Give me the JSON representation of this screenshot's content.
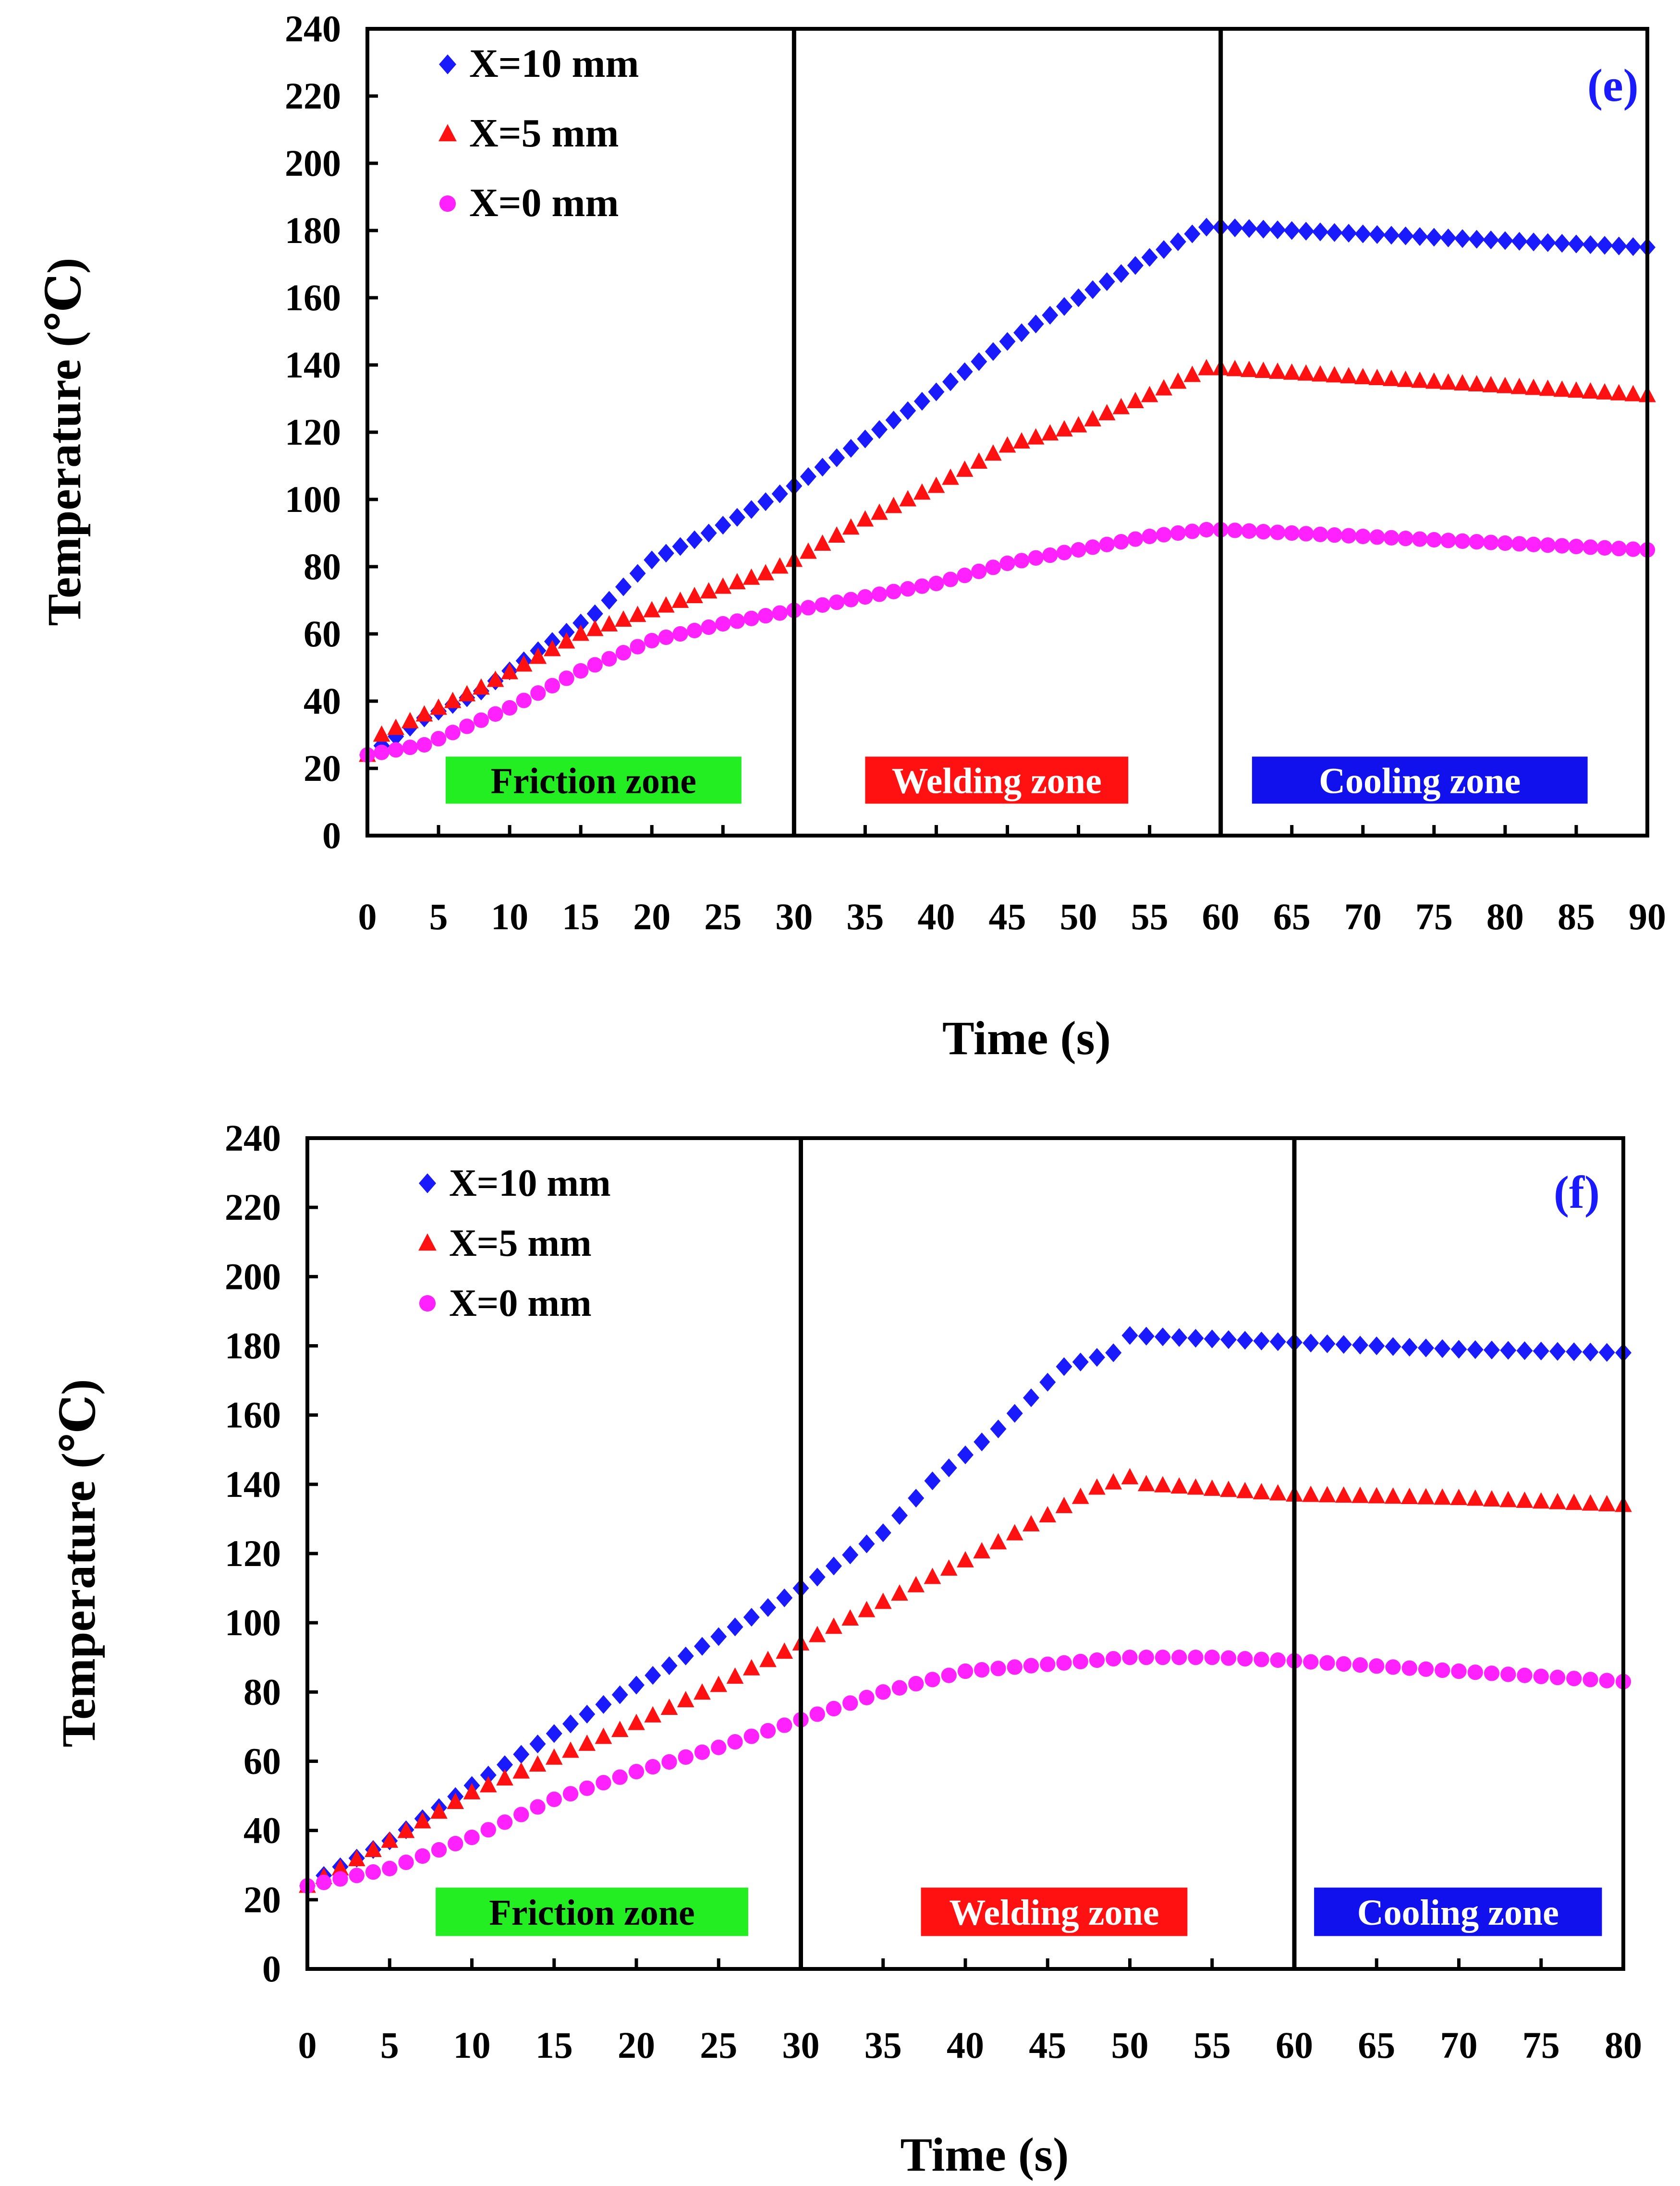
{
  "chart_data": [
    {
      "type": "scatter",
      "panel_label": "(e)",
      "xlabel": "Time (s)",
      "ylabel": "Temperature (℃)",
      "xlim": [
        0,
        90
      ],
      "ylim": [
        0,
        240
      ],
      "xticks": [
        0,
        5,
        10,
        15,
        20,
        25,
        30,
        35,
        40,
        45,
        50,
        55,
        60,
        65,
        70,
        75,
        80,
        85,
        90
      ],
      "yticks": [
        0,
        20,
        40,
        60,
        80,
        100,
        120,
        140,
        160,
        180,
        200,
        220,
        240
      ],
      "grid": false,
      "legend_position": "top-left",
      "zone_dividers": [
        30,
        60
      ],
      "zones": [
        {
          "label": "Friction zone",
          "color": "#22ee22",
          "text_color": "#000000",
          "x_start": 5.5,
          "x_end": 26.3
        },
        {
          "label": "Welding zone",
          "color": "#ff1111",
          "text_color": "#ffffff",
          "x_start": 35,
          "x_end": 53.5
        },
        {
          "label": "Cooling zone",
          "color": "#1111ee",
          "text_color": "#ffffff",
          "x_start": 62.2,
          "x_end": 85.8
        }
      ],
      "series": [
        {
          "name": "X=10 mm",
          "marker": "diamond",
          "color": "#1a1aff",
          "anchors": [
            [
              0,
              24
            ],
            [
              4,
              35
            ],
            [
              8,
              43
            ],
            [
              12,
              55
            ],
            [
              16,
              66
            ],
            [
              20,
              82
            ],
            [
              24,
              90
            ],
            [
              30,
              104
            ],
            [
              35,
              118
            ],
            [
              40,
              132
            ],
            [
              45,
              147
            ],
            [
              50,
              160
            ],
            [
              55,
              172
            ],
            [
              58,
              179
            ],
            [
              59,
              181
            ],
            [
              60,
              181
            ],
            [
              90,
              175
            ]
          ]
        },
        {
          "name": "X=5 mm",
          "marker": "triangle",
          "color": "#ff1111",
          "anchors": [
            [
              0,
              24
            ],
            [
              1,
              30
            ],
            [
              8,
              44
            ],
            [
              15,
              60
            ],
            [
              20,
              67
            ],
            [
              25,
              74
            ],
            [
              28,
              78
            ],
            [
              30,
              82
            ],
            [
              35,
              94
            ],
            [
              40,
              104
            ],
            [
              45,
              116
            ],
            [
              50,
              122
            ],
            [
              55,
              131
            ],
            [
              59,
              139
            ],
            [
              60,
              139
            ],
            [
              90,
              131
            ]
          ]
        },
        {
          "name": "X=0 mm",
          "marker": "circle",
          "color": "#ff22ff",
          "anchors": [
            [
              0,
              24
            ],
            [
              4,
              27
            ],
            [
              10,
              38
            ],
            [
              15,
              49
            ],
            [
              20,
              58
            ],
            [
              25,
              63
            ],
            [
              30,
              67
            ],
            [
              35,
              71
            ],
            [
              40,
              75
            ],
            [
              45,
              81
            ],
            [
              50,
              85
            ],
            [
              55,
              89
            ],
            [
              59,
              91
            ],
            [
              60,
              91
            ],
            [
              65,
              90
            ],
            [
              75,
              88
            ],
            [
              90,
              85
            ]
          ]
        }
      ]
    },
    {
      "type": "scatter",
      "panel_label": "(f)",
      "xlabel": "Time (s)",
      "ylabel": "Temperature (℃)",
      "xlim": [
        0,
        80
      ],
      "ylim": [
        0,
        240
      ],
      "xticks": [
        0,
        5,
        10,
        15,
        20,
        25,
        30,
        35,
        40,
        45,
        50,
        55,
        60,
        65,
        70,
        75,
        80
      ],
      "yticks": [
        0,
        20,
        40,
        60,
        80,
        100,
        120,
        140,
        160,
        180,
        200,
        220,
        240
      ],
      "grid": false,
      "legend_position": "top-left",
      "zone_dividers": [
        30,
        60
      ],
      "zones": [
        {
          "label": "Friction zone",
          "color": "#22ee22",
          "text_color": "#000000",
          "x_start": 7.8,
          "x_end": 26.8
        },
        {
          "label": "Welding zone",
          "color": "#ff1111",
          "text_color": "#ffffff",
          "x_start": 37.3,
          "x_end": 53.5
        },
        {
          "label": "Cooling zone",
          "color": "#1111ee",
          "text_color": "#ffffff",
          "x_start": 61.2,
          "x_end": 78.7
        }
      ],
      "series": [
        {
          "name": "X=10 mm",
          "marker": "diamond",
          "color": "#1a1aff",
          "anchors": [
            [
              0,
              24
            ],
            [
              1,
              27
            ],
            [
              5,
              37
            ],
            [
              10,
              53
            ],
            [
              15,
              68
            ],
            [
              20,
              82
            ],
            [
              25,
              96
            ],
            [
              30,
              110
            ],
            [
              35,
              126
            ],
            [
              38,
              141
            ],
            [
              42,
              156
            ],
            [
              46,
              174
            ],
            [
              49,
              178
            ],
            [
              50,
              183
            ],
            [
              55,
              182
            ],
            [
              60,
              181
            ],
            [
              70,
              179
            ],
            [
              80,
              178
            ]
          ]
        },
        {
          "name": "X=5 mm",
          "marker": "triangle",
          "color": "#ff1111",
          "anchors": [
            [
              0,
              24
            ],
            [
              2,
              29
            ],
            [
              5,
              37
            ],
            [
              10,
              51
            ],
            [
              15,
              61
            ],
            [
              20,
              71
            ],
            [
              25,
              82
            ],
            [
              30,
              94
            ],
            [
              35,
              106
            ],
            [
              40,
              118
            ],
            [
              45,
              131
            ],
            [
              48,
              139
            ],
            [
              50,
              142
            ],
            [
              51,
              140
            ],
            [
              60,
              137
            ],
            [
              70,
              136
            ],
            [
              80,
              134
            ]
          ]
        },
        {
          "name": "X=0 mm",
          "marker": "circle",
          "color": "#ff22ff",
          "anchors": [
            [
              0,
              24
            ],
            [
              2,
              26
            ],
            [
              5,
              29
            ],
            [
              10,
              38
            ],
            [
              15,
              49
            ],
            [
              20,
              57
            ],
            [
              25,
              64
            ],
            [
              30,
              72
            ],
            [
              35,
              80
            ],
            [
              40,
              86
            ],
            [
              45,
              88
            ],
            [
              50,
              90
            ],
            [
              55,
              90
            ],
            [
              60,
              89
            ],
            [
              70,
              86
            ],
            [
              80,
              83
            ]
          ]
        }
      ]
    }
  ]
}
